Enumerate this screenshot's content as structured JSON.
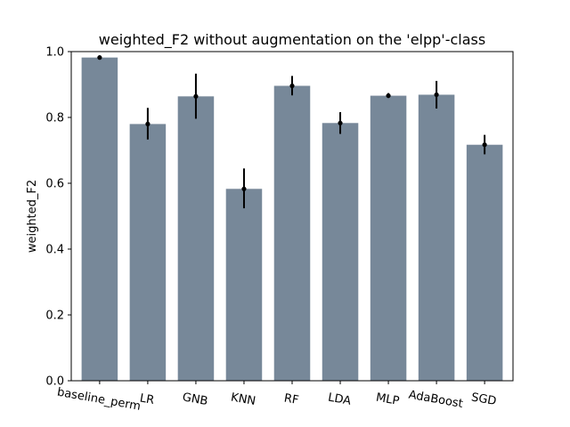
{
  "chart_data": {
    "type": "bar",
    "title": "weighted_F2 without augmentation on the 'elpp'-class",
    "xlabel": "",
    "ylabel": "weighted_F2",
    "ylim": [
      0,
      1.0
    ],
    "yticks": [
      0.0,
      0.2,
      0.4,
      0.6,
      0.8,
      1.0
    ],
    "ytick_labels": [
      "0.0",
      "0.2",
      "0.4",
      "0.6",
      "0.8",
      "1.0"
    ],
    "categories": [
      "baseline_perm",
      "LR",
      "GNB",
      "KNN",
      "RF",
      "LDA",
      "MLP",
      "AdaBoost",
      "SGD"
    ],
    "values": [
      0.982,
      0.78,
      0.864,
      0.583,
      0.896,
      0.783,
      0.866,
      0.869,
      0.717
    ],
    "mean_markers": [
      0.982,
      0.78,
      0.864,
      0.583,
      0.896,
      0.783,
      0.866,
      0.869,
      0.717
    ],
    "error_low": [
      0.977,
      0.733,
      0.796,
      0.524,
      0.867,
      0.75,
      0.859,
      0.827,
      0.688
    ],
    "error_high": [
      0.988,
      0.829,
      0.933,
      0.645,
      0.926,
      0.816,
      0.874,
      0.911,
      0.747
    ],
    "bar_color": "#778899",
    "error_color": "#000000",
    "x_tick_rotation_deg": 10,
    "grid": false,
    "legend": "none"
  }
}
